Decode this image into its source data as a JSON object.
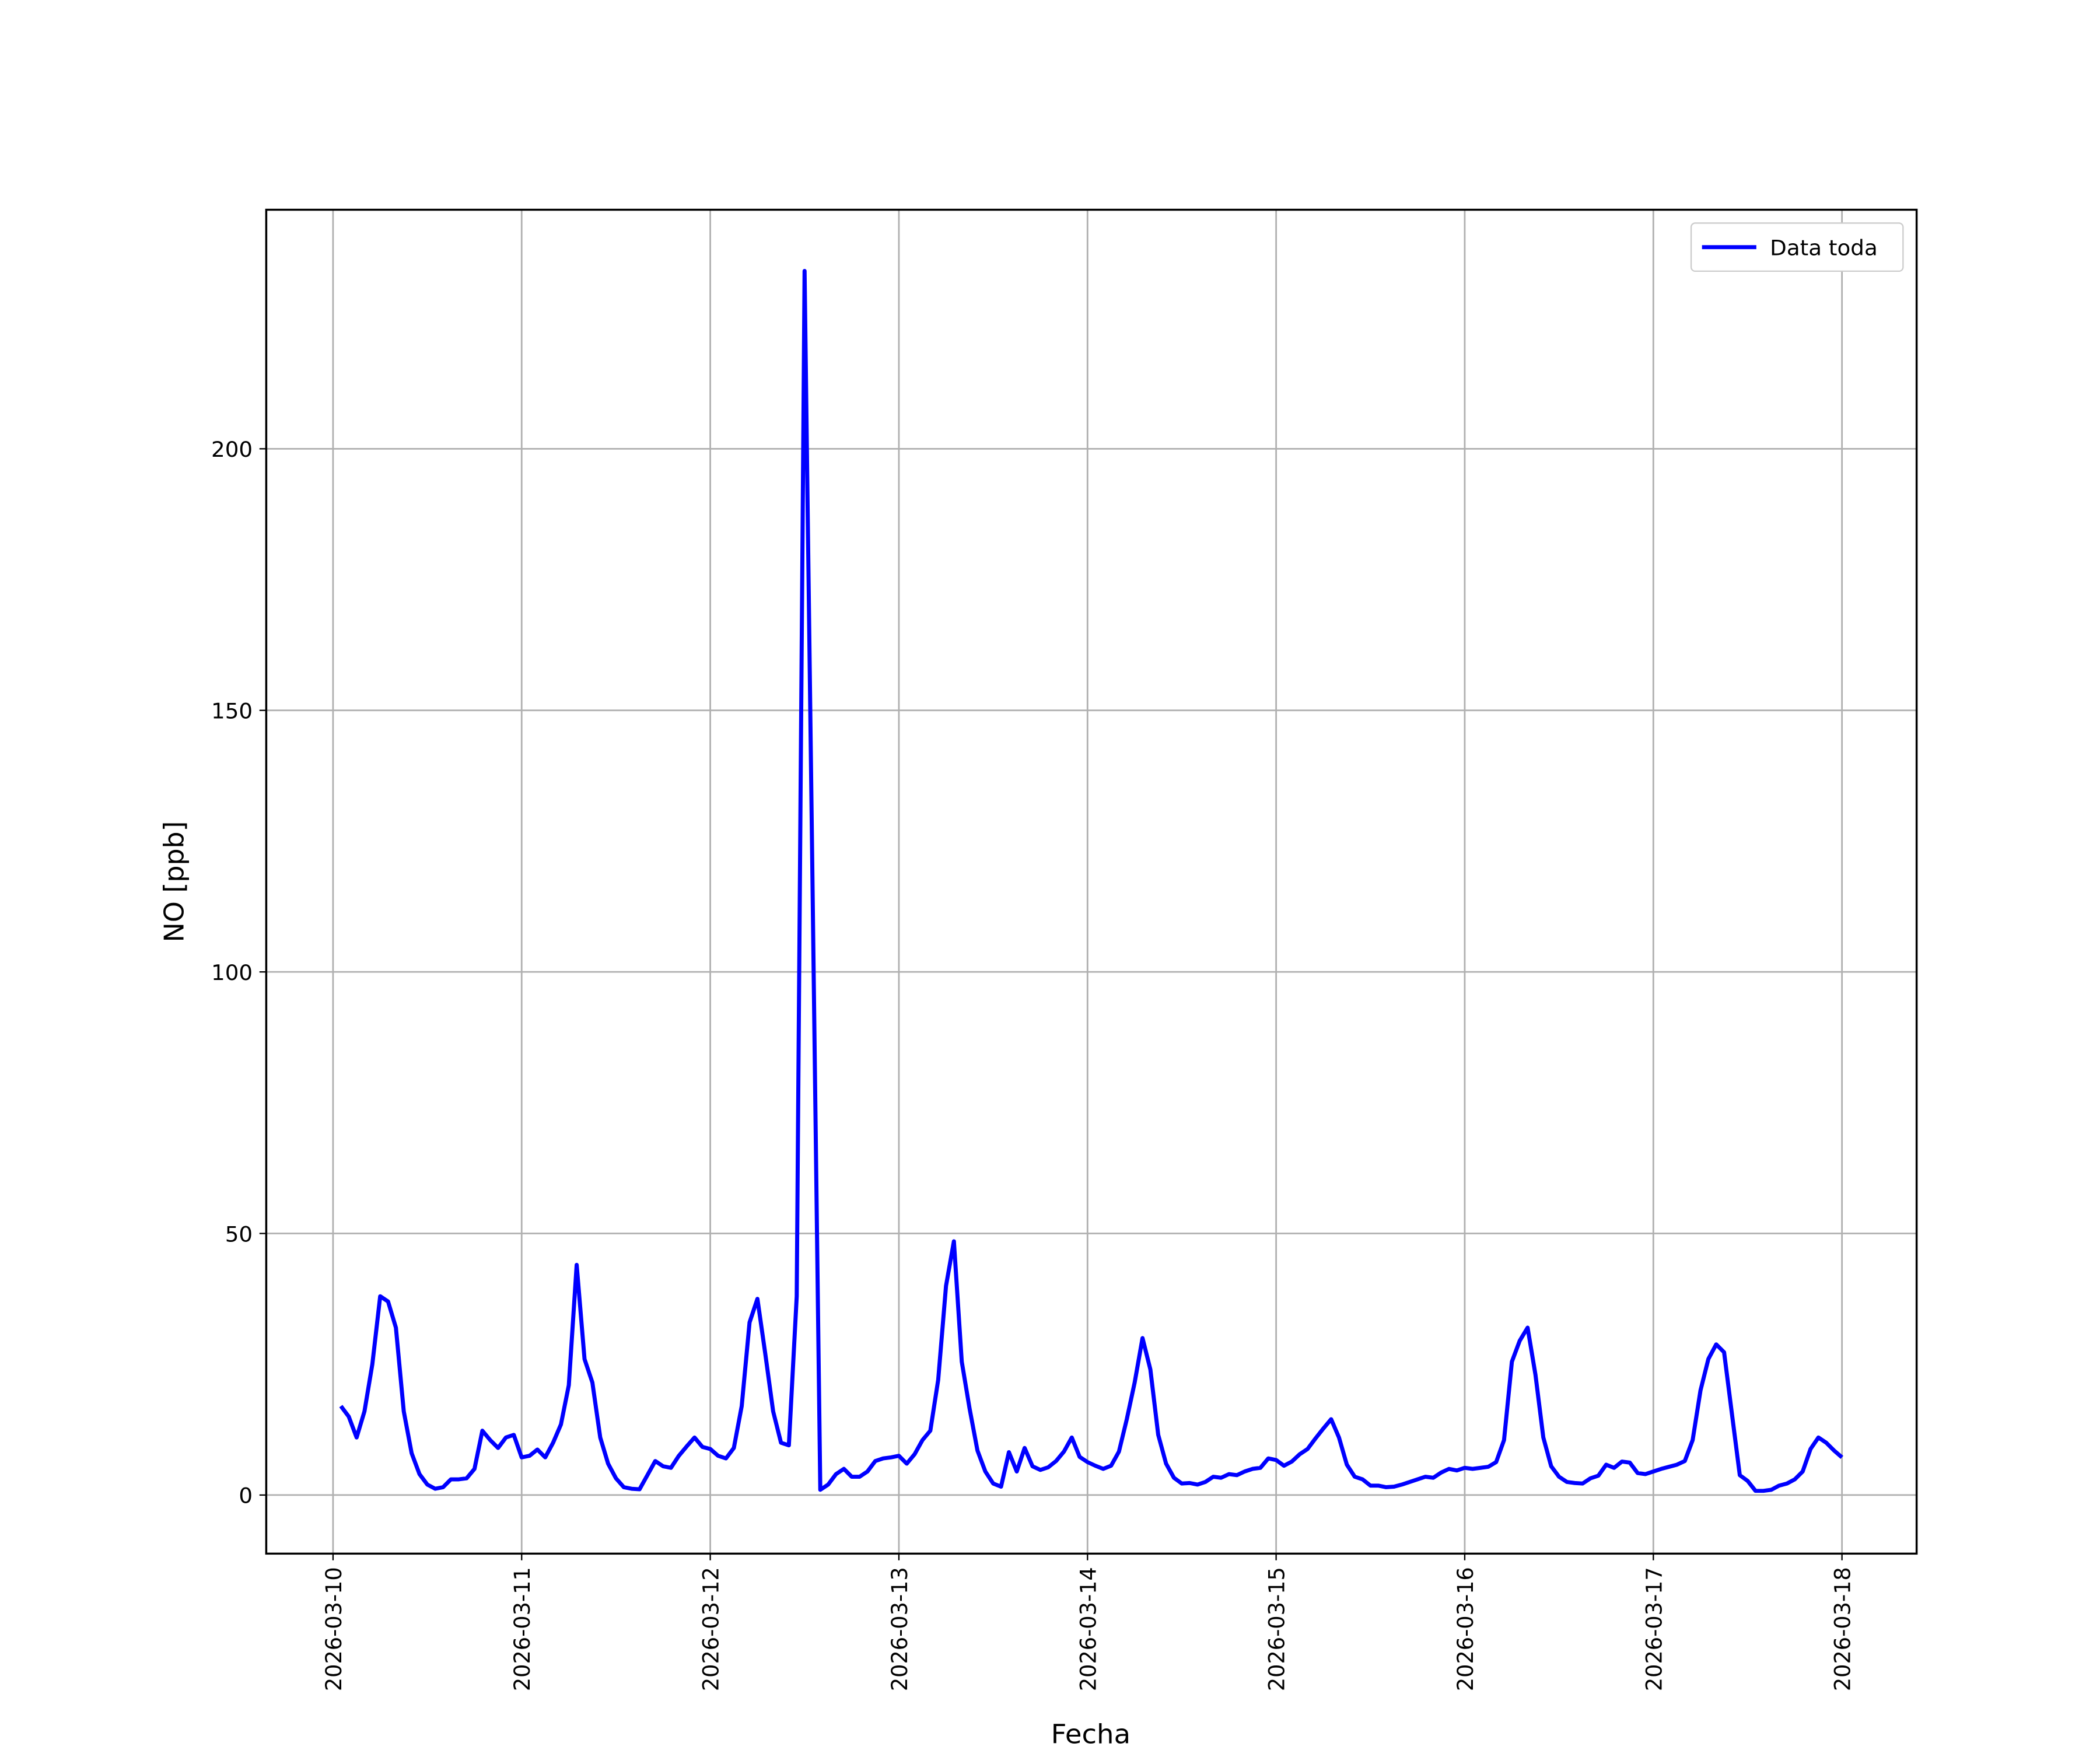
{
  "chart_data": {
    "type": "line",
    "xlabel": "Fecha",
    "ylabel": "NO [ppb]",
    "x": [
      "2026-03-10 01:00",
      "2026-03-10 02:00",
      "2026-03-10 03:00",
      "2026-03-10 04:00",
      "2026-03-10 05:00",
      "2026-03-10 06:00",
      "2026-03-10 07:00",
      "2026-03-10 08:00",
      "2026-03-10 09:00",
      "2026-03-10 10:00",
      "2026-03-10 11:00",
      "2026-03-10 12:00",
      "2026-03-10 13:00",
      "2026-03-10 14:00",
      "2026-03-10 15:00",
      "2026-03-10 16:00",
      "2026-03-10 17:00",
      "2026-03-10 18:00",
      "2026-03-10 19:00",
      "2026-03-10 20:00",
      "2026-03-10 21:00",
      "2026-03-10 22:00",
      "2026-03-10 23:00",
      "2026-03-11 00:00",
      "2026-03-11 01:00",
      "2026-03-11 02:00",
      "2026-03-11 03:00",
      "2026-03-11 04:00",
      "2026-03-11 05:00",
      "2026-03-11 06:00",
      "2026-03-11 07:00",
      "2026-03-11 08:00",
      "2026-03-11 09:00",
      "2026-03-11 10:00",
      "2026-03-11 11:00",
      "2026-03-11 12:00",
      "2026-03-11 13:00",
      "2026-03-11 14:00",
      "2026-03-11 15:00",
      "2026-03-11 16:00",
      "2026-03-11 17:00",
      "2026-03-11 18:00",
      "2026-03-11 19:00",
      "2026-03-11 20:00",
      "2026-03-11 21:00",
      "2026-03-11 22:00",
      "2026-03-11 23:00",
      "2026-03-12 00:00",
      "2026-03-12 01:00",
      "2026-03-12 02:00",
      "2026-03-12 03:00",
      "2026-03-12 04:00",
      "2026-03-12 05:00",
      "2026-03-12 06:00",
      "2026-03-12 07:00",
      "2026-03-12 08:00",
      "2026-03-12 09:00",
      "2026-03-12 10:00",
      "2026-03-12 11:00",
      "2026-03-12 12:00",
      "2026-03-12 13:00",
      "2026-03-12 14:00",
      "2026-03-12 15:00",
      "2026-03-12 16:00",
      "2026-03-12 17:00",
      "2026-03-12 18:00",
      "2026-03-12 19:00",
      "2026-03-12 20:00",
      "2026-03-12 21:00",
      "2026-03-12 22:00",
      "2026-03-12 23:00",
      "2026-03-13 00:00",
      "2026-03-13 01:00",
      "2026-03-13 02:00",
      "2026-03-13 03:00",
      "2026-03-13 04:00",
      "2026-03-13 05:00",
      "2026-03-13 06:00",
      "2026-03-13 07:00",
      "2026-03-13 08:00",
      "2026-03-13 09:00",
      "2026-03-13 10:00",
      "2026-03-13 11:00",
      "2026-03-13 12:00",
      "2026-03-13 13:00",
      "2026-03-13 14:00",
      "2026-03-13 15:00",
      "2026-03-13 16:00",
      "2026-03-13 17:00",
      "2026-03-13 18:00",
      "2026-03-13 19:00",
      "2026-03-13 20:00",
      "2026-03-13 21:00",
      "2026-03-13 22:00",
      "2026-03-13 23:00",
      "2026-03-14 00:00",
      "2026-03-14 01:00",
      "2026-03-14 02:00",
      "2026-03-14 03:00",
      "2026-03-14 04:00",
      "2026-03-14 05:00",
      "2026-03-14 06:00",
      "2026-03-14 07:00",
      "2026-03-14 08:00",
      "2026-03-14 09:00",
      "2026-03-14 10:00",
      "2026-03-14 11:00",
      "2026-03-14 12:00",
      "2026-03-14 13:00",
      "2026-03-14 14:00",
      "2026-03-14 15:00",
      "2026-03-14 16:00",
      "2026-03-14 17:00",
      "2026-03-14 18:00",
      "2026-03-14 19:00",
      "2026-03-14 20:00",
      "2026-03-14 21:00",
      "2026-03-14 22:00",
      "2026-03-14 23:00",
      "2026-03-15 00:00",
      "2026-03-15 01:00",
      "2026-03-15 02:00",
      "2026-03-15 03:00",
      "2026-03-15 04:00",
      "2026-03-15 05:00",
      "2026-03-15 06:00",
      "2026-03-15 07:00",
      "2026-03-15 08:00",
      "2026-03-15 09:00",
      "2026-03-15 10:00",
      "2026-03-15 11:00",
      "2026-03-15 12:00",
      "2026-03-15 13:00",
      "2026-03-15 14:00",
      "2026-03-15 15:00",
      "2026-03-15 16:00",
      "2026-03-15 17:00",
      "2026-03-15 18:00",
      "2026-03-15 19:00",
      "2026-03-15 20:00",
      "2026-03-15 21:00",
      "2026-03-15 22:00",
      "2026-03-15 23:00",
      "2026-03-16 00:00",
      "2026-03-16 01:00",
      "2026-03-16 02:00",
      "2026-03-16 03:00",
      "2026-03-16 04:00",
      "2026-03-16 05:00",
      "2026-03-16 06:00",
      "2026-03-16 07:00",
      "2026-03-16 08:00",
      "2026-03-16 09:00",
      "2026-03-16 10:00",
      "2026-03-16 11:00",
      "2026-03-16 12:00",
      "2026-03-16 13:00",
      "2026-03-16 14:00",
      "2026-03-16 15:00",
      "2026-03-16 16:00",
      "2026-03-16 17:00",
      "2026-03-16 18:00",
      "2026-03-16 19:00",
      "2026-03-16 20:00",
      "2026-03-16 21:00",
      "2026-03-16 22:00",
      "2026-03-16 23:00",
      "2026-03-17 00:00",
      "2026-03-17 01:00",
      "2026-03-17 02:00",
      "2026-03-17 03:00",
      "2026-03-17 04:00",
      "2026-03-17 05:00",
      "2026-03-17 06:00",
      "2026-03-17 07:00",
      "2026-03-17 08:00",
      "2026-03-17 09:00",
      "2026-03-17 10:00",
      "2026-03-17 11:00",
      "2026-03-17 12:00",
      "2026-03-17 13:00",
      "2026-03-17 14:00",
      "2026-03-17 15:00",
      "2026-03-17 16:00",
      "2026-03-17 17:00",
      "2026-03-17 18:00",
      "2026-03-17 19:00",
      "2026-03-17 20:00",
      "2026-03-17 21:00",
      "2026-03-17 22:00",
      "2026-03-17 23:00",
      "2026-03-18 00:00"
    ],
    "series": [
      {
        "name": "Data toda",
        "color": "#0000ff",
        "values": [
          17,
          15,
          11,
          16,
          25,
          38,
          37,
          32,
          16,
          8,
          4,
          2,
          1.2,
          1.5,
          3,
          3,
          3.2,
          5,
          12.3,
          10.5,
          9,
          11,
          11.5,
          7.2,
          7.5,
          8.7,
          7.2,
          10,
          13.5,
          21,
          44,
          26,
          21.5,
          11,
          6,
          3.2,
          1.5,
          1.2,
          1.1,
          3.8,
          6.5,
          5.5,
          5.2,
          7.5,
          9.3,
          11,
          9.2,
          8.8,
          7.5,
          7,
          9,
          17,
          33,
          37.5,
          27,
          16,
          10,
          9.5,
          38,
          234,
          118,
          1,
          2,
          4,
          5,
          3.5,
          3.5,
          4.5,
          6.5,
          7,
          7.2,
          7.5,
          6,
          7.8,
          10.5,
          12.3,
          22,
          40,
          48.5,
          25.5,
          16.5,
          8.5,
          4.5,
          2.2,
          1.6,
          8.2,
          4.5,
          9,
          5.5,
          4.8,
          5.3,
          6.5,
          8.3,
          11,
          7.3,
          6.3,
          5.6,
          5,
          5.6,
          8.3,
          14.5,
          21.5,
          30,
          24,
          11.5,
          6,
          3.3,
          2.2,
          2.3,
          2,
          2.5,
          3.5,
          3.3,
          4,
          3.8,
          4.5,
          5,
          5.2,
          7,
          6.7,
          5.6,
          6.4,
          7.8,
          8.8,
          10.8,
          12.7,
          14.5,
          11,
          5.8,
          3.5,
          3,
          1.8,
          1.8,
          1.5,
          1.6,
          2,
          2.5,
          3,
          3.5,
          3.3,
          4.3,
          5,
          4.7,
          5.2,
          5,
          5.2,
          5.4,
          6.3,
          10.5,
          25.5,
          29.5,
          32,
          23,
          11,
          5.5,
          3.5,
          2.5,
          2.3,
          2.2,
          3.2,
          3.7,
          5.8,
          5.2,
          6.4,
          6.2,
          4.2,
          4,
          4.5,
          5,
          5.4,
          5.8,
          6.5,
          10.5,
          20,
          26,
          28.8,
          27.3,
          15.5,
          3.8,
          2.7,
          0.8,
          0.8,
          1,
          1.8,
          2.2,
          3,
          4.5,
          8.8,
          11,
          10,
          8.5,
          7.2
        ]
      }
    ],
    "xlim": [
      "2026-03-09 15:30",
      "2026-03-18 09:30"
    ],
    "xticks": [
      "2026-03-10",
      "2026-03-11",
      "2026-03-12",
      "2026-03-13",
      "2026-03-14",
      "2026-03-15",
      "2026-03-16",
      "2026-03-17",
      "2026-03-18"
    ],
    "ylim": [
      -11.2,
      245.7
    ],
    "yticks": [
      0,
      50,
      100,
      150,
      200
    ],
    "grid": true,
    "legend": "upper right"
  }
}
